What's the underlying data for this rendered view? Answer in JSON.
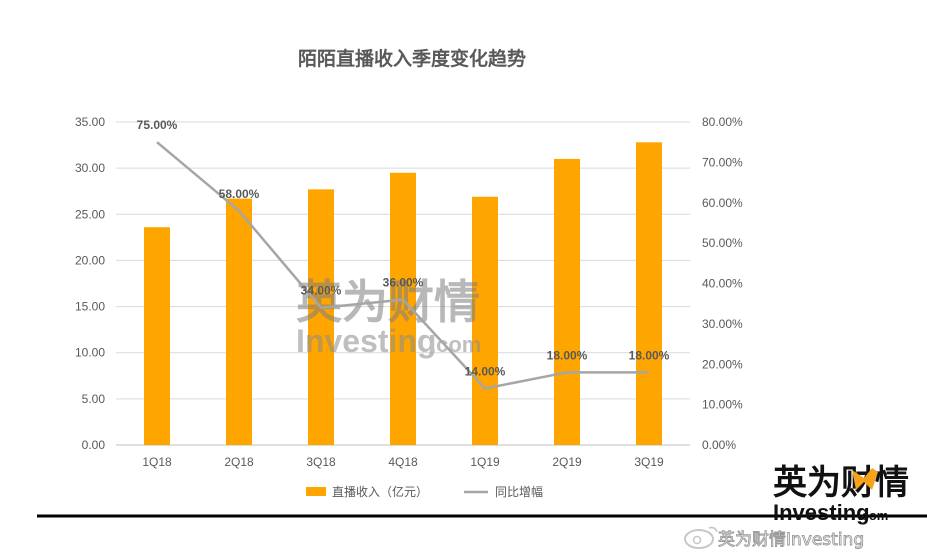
{
  "chart_data": {
    "type": "bar",
    "title": "陌陌直播收入季度变化趋势",
    "categories": [
      "1Q18",
      "2Q18",
      "3Q18",
      "4Q18",
      "1Q19",
      "2Q19",
      "3Q19"
    ],
    "series": [
      {
        "name": "直播收入（亿元）",
        "type": "bar",
        "axis": "left",
        "color": "#FFA500",
        "values": [
          23.6,
          26.7,
          27.7,
          29.5,
          26.9,
          31.0,
          32.8
        ]
      },
      {
        "name": "同比增幅",
        "type": "line",
        "axis": "right",
        "color": "#A6A6A6",
        "values": [
          75.0,
          58.0,
          34.0,
          36.0,
          14.0,
          18.0,
          18.0
        ],
        "labels": [
          "75.00%",
          "58.00%",
          "34.00%",
          "36.00%",
          "14.00%",
          "18.00%",
          "18.00%"
        ]
      }
    ],
    "y_left": {
      "min": 0,
      "max": 35,
      "step": 5,
      "ticks": [
        "0.00",
        "5.00",
        "10.00",
        "15.00",
        "20.00",
        "25.00",
        "30.00",
        "35.00"
      ]
    },
    "y_right": {
      "min": 0,
      "max": 80,
      "step": 10,
      "ticks": [
        "0.00%",
        "10.00%",
        "20.00%",
        "30.00%",
        "40.00%",
        "50.00%",
        "60.00%",
        "70.00%",
        "80.00%"
      ]
    },
    "grid": true,
    "legend": "bottom"
  },
  "watermark": {
    "cn": "英为财情",
    "en": "Investing",
    "domain": ".com"
  },
  "logo": {
    "cn": "英为财情",
    "en": "Investing",
    "domain": ".com"
  },
  "weibo": {
    "text": "英为财情Investing"
  },
  "colors": {
    "bar": "#FFA500",
    "line": "#A6A6A6",
    "text": "#595959",
    "grid": "#D9D9D9"
  }
}
